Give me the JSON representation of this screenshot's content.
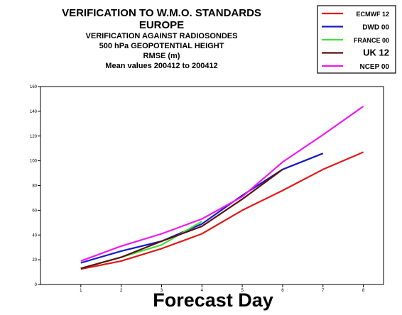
{
  "title": {
    "line1": "VERIFICATION TO W.M.O. STANDARDS",
    "line2": "EUROPE",
    "line3": "VERIFICATION AGAINST RADIOSONDES",
    "line4": "500 hPa GEOPOTENTIAL HEIGHT",
    "line5": "RMSE (m)",
    "line6": "Mean values 200412 to 200412"
  },
  "colors": {
    "ecmwf": "#e01818",
    "dwd": "#1818c8",
    "france": "#40e040",
    "uk": "#5a0f0f",
    "ncep": "#f018f0"
  },
  "chart_data": {
    "type": "line",
    "title": "VERIFICATION TO W.M.O. STANDARDS",
    "xlabel": "Forecast Day",
    "ylabel": "",
    "x": [
      1,
      2,
      3,
      4,
      5,
      6,
      7,
      8
    ],
    "xlim": [
      0,
      8.5
    ],
    "ylim": [
      0,
      160
    ],
    "yticks": [
      0,
      20,
      40,
      60,
      80,
      100,
      120,
      140,
      160
    ],
    "xticks": [
      1,
      2,
      3,
      4,
      5,
      6,
      7,
      8
    ],
    "grid": false,
    "legend_position": "top-right",
    "series": [
      {
        "name": "ECMWF 12",
        "color": "#e01818",
        "x": [
          1,
          2,
          3,
          4,
          5,
          6,
          7,
          8
        ],
        "values": [
          12.5,
          19,
          29,
          41,
          60,
          76,
          93,
          107
        ]
      },
      {
        "name": "DWD 00",
        "color": "#1818c8",
        "x": [
          1,
          2,
          3,
          4,
          5,
          6,
          7
        ],
        "values": [
          17.5,
          27,
          35,
          49,
          72,
          93,
          106
        ]
      },
      {
        "name": "FRANCE 00",
        "color": "#40e040",
        "x": [
          1,
          2,
          3,
          4
        ],
        "values": [
          13,
          22,
          32,
          51
        ]
      },
      {
        "name": "UK 12",
        "color": "#5a0f0f",
        "x": [
          1,
          2,
          3,
          4,
          5,
          6
        ],
        "values": [
          13,
          22,
          35,
          47,
          69,
          93
        ]
      },
      {
        "name": "NCEP 00",
        "color": "#f018f0",
        "x": [
          1,
          2,
          3,
          4,
          5,
          6,
          7,
          8
        ],
        "values": [
          19,
          31,
          41,
          53,
          71,
          99,
          121,
          144
        ]
      }
    ]
  }
}
